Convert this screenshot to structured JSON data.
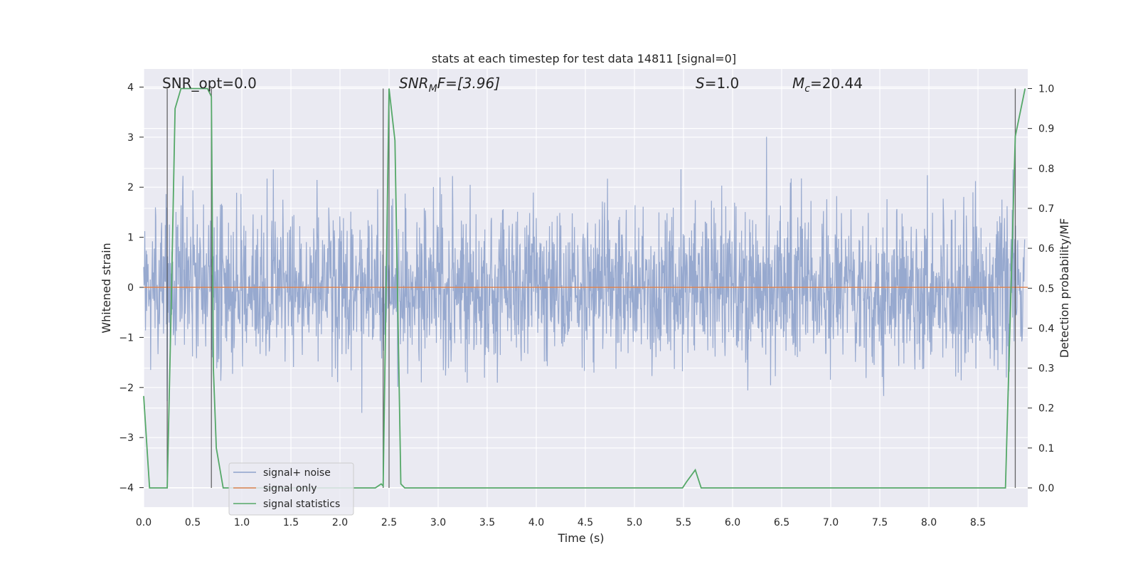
{
  "chart_data": {
    "type": "line",
    "title": "stats at each timestep for test data 14811 [signal=0]",
    "xlabel": "Time (s)",
    "ylabel": "Whitened strain",
    "ylabel_right": "Detection probability/MF",
    "xlim": [
      0.0,
      9.0
    ],
    "ylim": [
      -4.4,
      4.4
    ],
    "ylim_right": [
      -0.05,
      1.05
    ],
    "xticks": [
      "0.0",
      "0.5",
      "1.0",
      "1.5",
      "2.0",
      "2.5",
      "3.0",
      "3.5",
      "4.0",
      "4.5",
      "5.0",
      "5.5",
      "6.0",
      "6.5",
      "7.0",
      "7.5",
      "8.0",
      "8.5"
    ],
    "yticks": [
      "4",
      "3",
      "2",
      "1",
      "0",
      "−1",
      "−2",
      "−3",
      "−4"
    ],
    "yticks_right": [
      "1.0",
      "0.9",
      "0.8",
      "0.7",
      "0.6",
      "0.5",
      "0.4",
      "0.3",
      "0.2",
      "0.1",
      "0.0"
    ],
    "annotations": {
      "snr_opt": "SNR_opt=0.0",
      "snr_mf_base": "SNR",
      "snr_mf_sub": "M",
      "snr_mf_rest": "F=[3.96]",
      "s_var": "S",
      "s_val": "=1.0",
      "mc_var": "M",
      "mc_sub": "c",
      "mc_val": "=20.44"
    },
    "series": [
      {
        "name": "signal+ noise",
        "color": "#8ea2cb",
        "description": "whitened noise, amplitude mostly within ±2, spikes up to ~±3.9"
      },
      {
        "name": "signal only",
        "color": "#dd8452",
        "values_constant": 0
      },
      {
        "name": "signal statistics",
        "color": "#55a868",
        "axis": "right",
        "x": [
          0.0,
          0.06,
          0.24,
          0.28,
          0.32,
          0.38,
          0.5,
          0.65,
          0.69,
          0.71,
          0.74,
          0.81,
          2.36,
          2.42,
          2.44,
          2.5,
          2.56,
          2.62,
          2.66,
          5.49,
          5.53,
          5.62,
          5.68,
          5.75,
          8.78,
          8.88,
          8.98
        ],
        "values": [
          0.23,
          0.0,
          0.0,
          0.45,
          0.95,
          1.0,
          1.0,
          1.0,
          0.98,
          0.3,
          0.1,
          0.0,
          0.0,
          0.01,
          0.005,
          1.0,
          0.87,
          0.01,
          0.0,
          0.0,
          0.015,
          0.045,
          0.0,
          0.0,
          0.0,
          0.88,
          1.0
        ]
      }
    ],
    "vertical_markers_x": [
      0.24,
      0.69,
      2.44,
      2.5,
      8.88
    ],
    "legend": {
      "position": "lower-left",
      "entries": [
        "signal+ noise",
        "signal only",
        "signal statistics"
      ]
    }
  }
}
